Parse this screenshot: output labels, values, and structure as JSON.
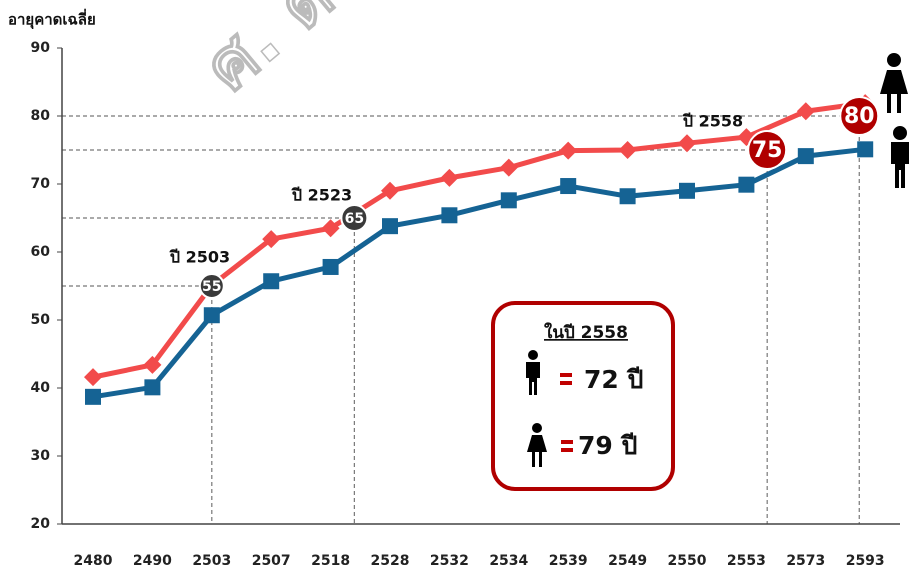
{
  "chart_data": {
    "type": "line",
    "y_label": "อายุคาดเฉลี่ย",
    "categories": [
      "2480",
      "2490",
      "2503",
      "2507",
      "2518",
      "2528",
      "2532",
      "2534",
      "2539",
      "2549",
      "2550",
      "2553",
      "2573",
      "2593"
    ],
    "series": [
      {
        "name": "หญิง",
        "color": "#f24b4b",
        "marker": "diamond",
        "values": [
          41.6,
          43.4,
          55.1,
          61.9,
          63.5,
          69.0,
          70.9,
          72.4,
          74.9,
          75.0,
          76.0,
          76.9,
          80.7,
          81.9
        ]
      },
      {
        "name": "ชาย",
        "color": "#156394",
        "marker": "square",
        "values": [
          38.7,
          40.1,
          50.7,
          55.7,
          57.8,
          63.8,
          65.4,
          67.6,
          69.7,
          68.2,
          69.0,
          69.9,
          74.1,
          75.1
        ]
      }
    ],
    "ylim": [
      20,
      90
    ],
    "yticks": [
      20,
      30,
      40,
      50,
      60,
      70,
      80,
      90
    ],
    "badges": [
      55,
      65,
      75,
      80
    ],
    "year_notes": [
      "ปี 2503",
      "ปี 2523",
      "ปี 2558"
    ],
    "box": {
      "title": "ในปี 2558",
      "male_text": "72 ปี",
      "female_text": "79 ปี"
    },
    "watermark": "ศ. ดร. ปราโม"
  }
}
